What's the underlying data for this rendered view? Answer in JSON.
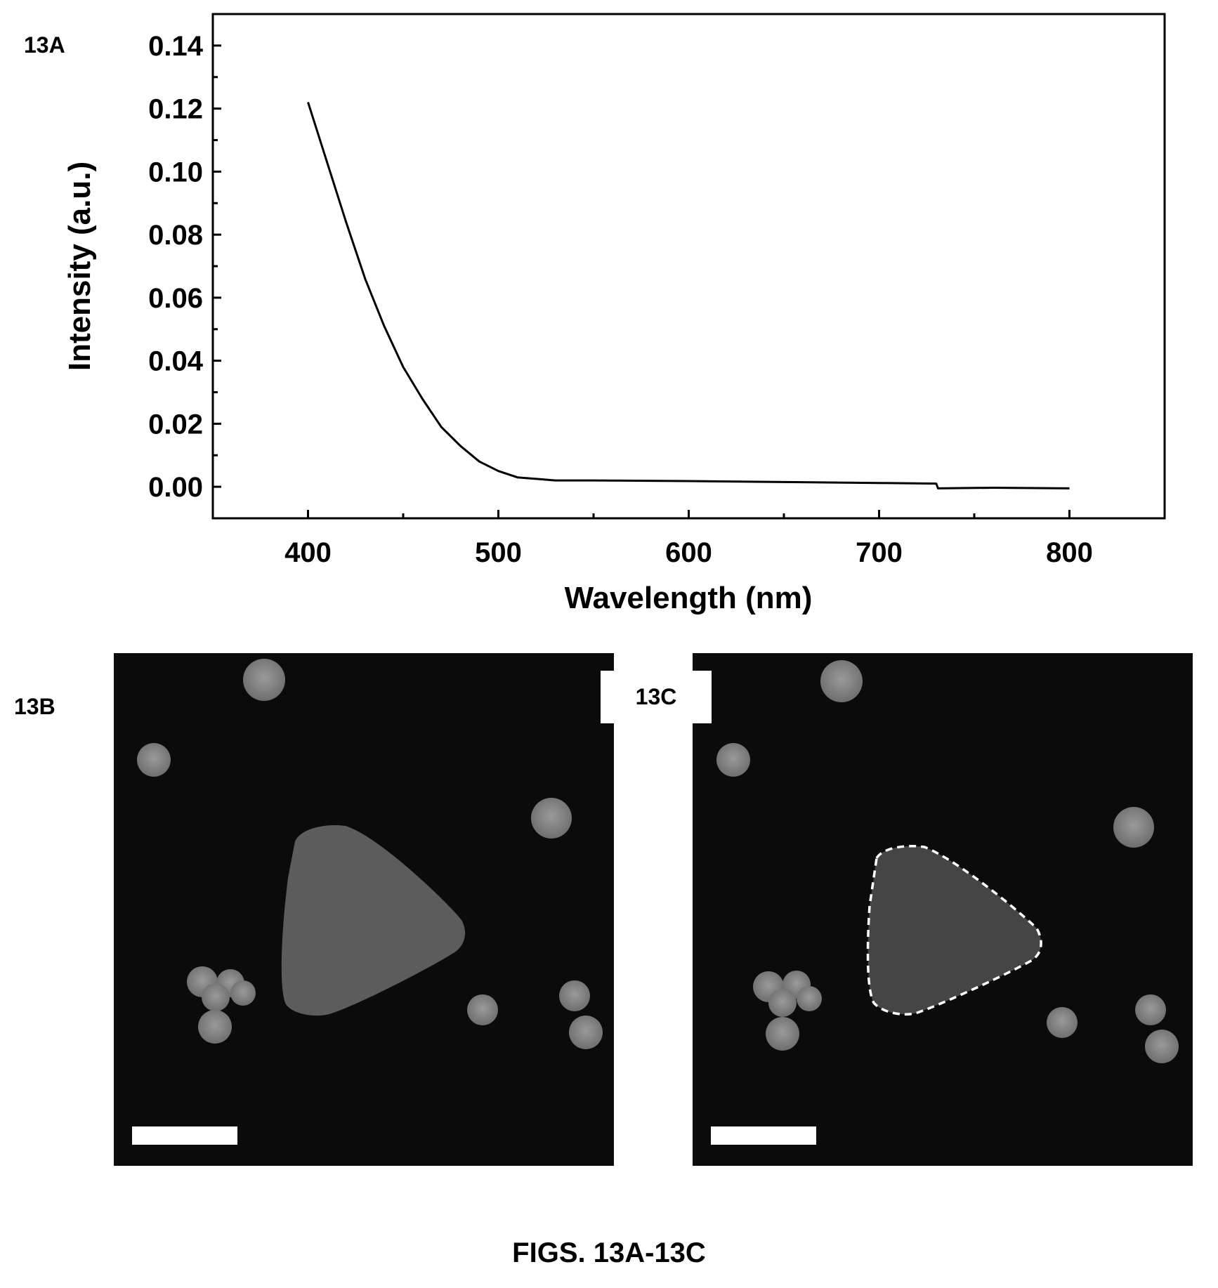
{
  "panels": {
    "a_label": "13A",
    "b_label": "13B",
    "c_label": "13C"
  },
  "caption": "FIGS. 13A-13C",
  "chart_data": {
    "type": "line",
    "title": "",
    "xlabel": "Wavelength (nm)",
    "ylabel": "Intensity (a.u.)",
    "xlim": [
      350,
      850
    ],
    "ylim": [
      -0.01,
      0.15
    ],
    "xticks": [
      400,
      500,
      600,
      700,
      800
    ],
    "yticks": [
      0.0,
      0.02,
      0.04,
      0.06,
      0.08,
      0.1,
      0.12,
      0.14
    ],
    "xtick_labels": [
      "400",
      "500",
      "600",
      "700",
      "800"
    ],
    "ytick_labels": [
      "0.00",
      "0.02",
      "0.04",
      "0.06",
      "0.08",
      "0.10",
      "0.12",
      "0.14"
    ],
    "grid": false,
    "legend": "none",
    "series": [
      {
        "color": "#000000",
        "x": [
          400,
          410,
          420,
          430,
          440,
          450,
          460,
          470,
          480,
          490,
          500,
          510,
          520,
          530,
          550,
          600,
          650,
          700,
          730,
          731,
          760,
          800
        ],
        "y": [
          0.122,
          0.103,
          0.084,
          0.066,
          0.051,
          0.038,
          0.028,
          0.019,
          0.013,
          0.008,
          0.005,
          0.003,
          0.0025,
          0.002,
          0.002,
          0.0018,
          0.0015,
          0.0012,
          0.001,
          -0.0005,
          -0.0003,
          -0.0005
        ]
      }
    ]
  },
  "micrographs": {
    "b": {
      "type": "micrograph",
      "scale_bar": true,
      "outlined": false
    },
    "c": {
      "type": "micrograph",
      "scale_bar": true,
      "outlined": true
    }
  }
}
